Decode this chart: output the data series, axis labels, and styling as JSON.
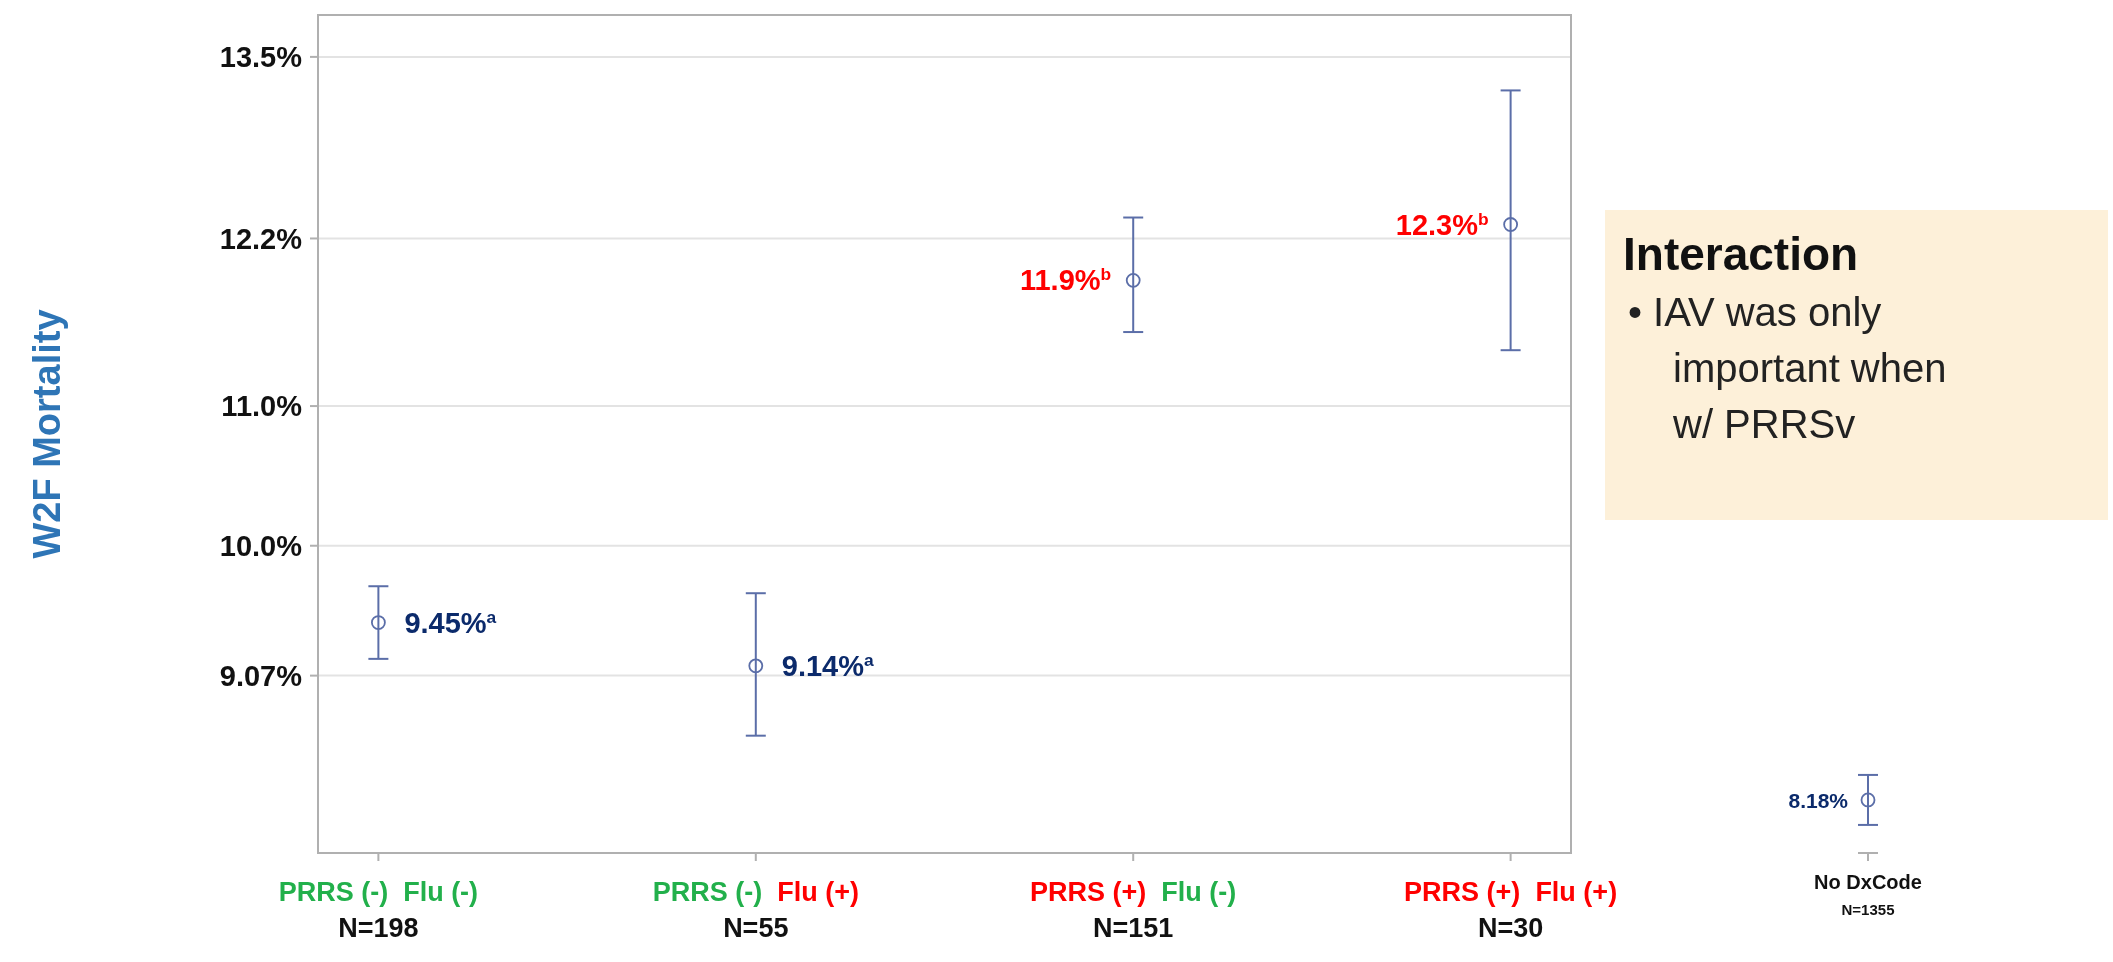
{
  "chart_data": [
    {
      "type": "scatter",
      "ylabel": "W2F Mortality",
      "categories": [
        "PRRS (-)  Flu (-)\nN=198",
        "PRRS (-)  Flu (+)\nN=55",
        "PRRS (+)  Flu (-)\nN=151",
        "PRRS (+)  Flu (+)\nN=30"
      ],
      "series": [
        {
          "color": "#5b6ea8",
          "values": [
            9.45,
            9.14,
            11.9,
            12.3
          ],
          "errors": [
            [
              9.19,
              9.71
            ],
            [
              8.64,
              9.66
            ],
            [
              11.53,
              12.35
            ],
            [
              11.4,
              13.26
            ]
          ],
          "value_labels": [
            "9.45%$^{a}$",
            "9.14%$^{a}$",
            "11.9%$^{b}$",
            "12.3%$^{b}$"
          ]
        }
      ],
      "ylim": [
        7.8,
        13.8
      ],
      "yticks": [
        {
          "value": 9.07,
          "label": "9.07%"
        },
        {
          "value": 10.0,
          "label": "10.0%"
        },
        {
          "value": 11.0,
          "label": "11.0%"
        },
        {
          "value": 12.2,
          "label": "12.2%"
        },
        {
          "value": 13.5,
          "label": "13.5%"
        }
      ],
      "grid": "y",
      "marker": "circle",
      "annotations": [
        "Interaction",
        "• IAV was only important when w/ PRRSv"
      ]
    },
    {
      "type": "other",
      "categories": [
        "No DxCode\nN=1355"
      ],
      "series": [
        {
          "color": "#5b6ea8",
          "values": [
            8.18
          ],
          "value_labels": [
            "8.18%"
          ]
        }
      ]
    }
  ]
}
